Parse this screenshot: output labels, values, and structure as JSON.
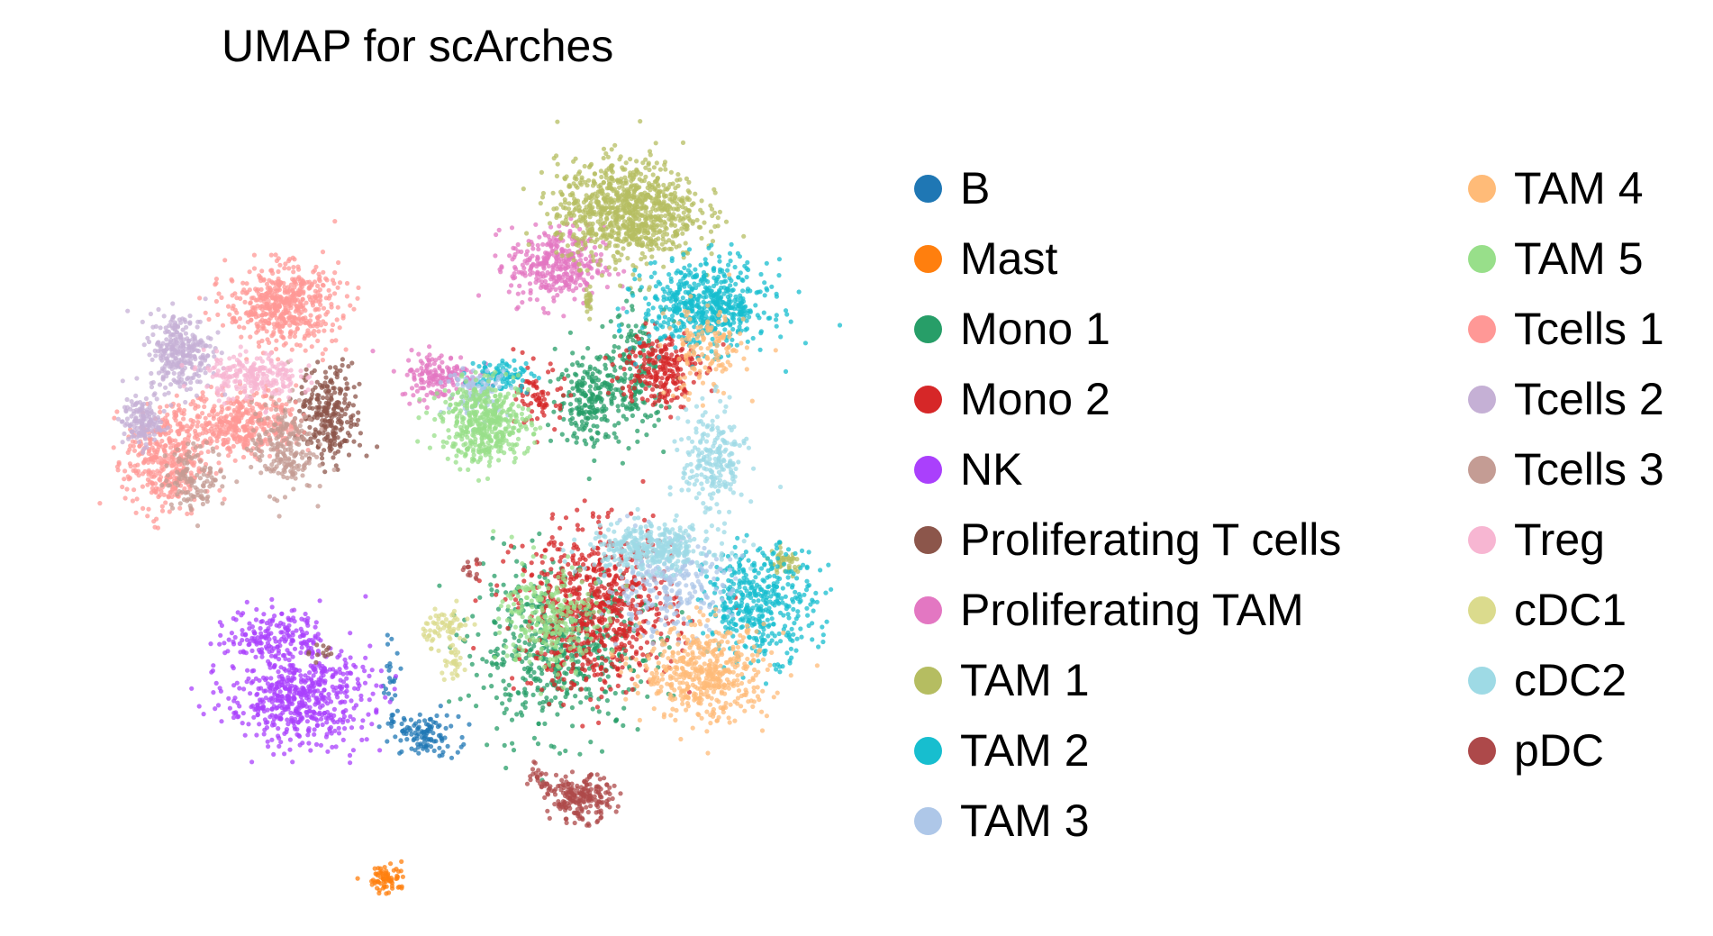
{
  "chart_data": {
    "type": "scatter",
    "title": "UMAP for scArches",
    "xlabel": "",
    "ylabel": "",
    "grid": false,
    "axes_visible": false,
    "legend_position": "right, two columns",
    "categories": [
      {
        "name": "B",
        "color": "#1f77b4",
        "clusters": [
          {
            "cx": 0.46,
            "cy": -0.79,
            "sx": 0.022,
            "sy": 0.013,
            "n": 110
          },
          {
            "cx": 0.42,
            "cy": -0.72,
            "sx": 0.006,
            "sy": 0.03,
            "n": 25
          }
        ]
      },
      {
        "name": "Mast",
        "color": "#ff7f0e",
        "clusters": [
          {
            "cx": 0.415,
            "cy": -0.97,
            "sx": 0.012,
            "sy": 0.01,
            "n": 70
          }
        ]
      },
      {
        "name": "Mono 1",
        "color": "#279e68",
        "clusters": [
          {
            "cx": 0.63,
            "cy": -0.68,
            "sx": 0.055,
            "sy": 0.05,
            "n": 560
          },
          {
            "cx": 0.67,
            "cy": -0.36,
            "sx": 0.02,
            "sy": 0.03,
            "n": 200
          },
          {
            "cx": 0.73,
            "cy": -0.33,
            "sx": 0.02,
            "sy": 0.04,
            "n": 190
          }
        ]
      },
      {
        "name": "Mono 2",
        "color": "#d62728",
        "clusters": [
          {
            "cx": 0.68,
            "cy": -0.63,
            "sx": 0.05,
            "sy": 0.05,
            "n": 720
          },
          {
            "cx": 0.76,
            "cy": -0.32,
            "sx": 0.025,
            "sy": 0.025,
            "n": 230
          },
          {
            "cx": 0.61,
            "cy": -0.36,
            "sx": 0.015,
            "sy": 0.02,
            "n": 70
          }
        ]
      },
      {
        "name": "NK",
        "color": "#aa40fc",
        "clusters": [
          {
            "cx": 0.3,
            "cy": -0.74,
            "sx": 0.045,
            "sy": 0.03,
            "n": 560
          },
          {
            "cx": 0.27,
            "cy": -0.66,
            "sx": 0.03,
            "sy": 0.018,
            "n": 170
          }
        ]
      },
      {
        "name": "Proliferating T cells",
        "color": "#8c564b",
        "clusters": [
          {
            "cx": 0.34,
            "cy": -0.38,
            "sx": 0.02,
            "sy": 0.03,
            "n": 260
          },
          {
            "cx": 0.33,
            "cy": -0.68,
            "sx": 0.008,
            "sy": 0.008,
            "n": 12
          }
        ]
      },
      {
        "name": "Proliferating TAM",
        "color": "#e377c2",
        "clusters": [
          {
            "cx": 0.63,
            "cy": -0.19,
            "sx": 0.03,
            "sy": 0.025,
            "n": 350
          },
          {
            "cx": 0.48,
            "cy": -0.33,
            "sx": 0.025,
            "sy": 0.015,
            "n": 160
          }
        ]
      },
      {
        "name": "TAM 1",
        "color": "#b5bd61",
        "clusters": [
          {
            "cx": 0.72,
            "cy": -0.12,
            "sx": 0.045,
            "sy": 0.032,
            "n": 900
          },
          {
            "cx": 0.92,
            "cy": -0.57,
            "sx": 0.012,
            "sy": 0.008,
            "n": 45
          },
          {
            "cx": 0.67,
            "cy": -0.24,
            "sx": 0.003,
            "sy": 0.012,
            "n": 20
          }
        ]
      },
      {
        "name": "TAM 2",
        "color": "#17becf",
        "clusters": [
          {
            "cx": 0.82,
            "cy": -0.24,
            "sx": 0.04,
            "sy": 0.028,
            "n": 560
          },
          {
            "cx": 0.89,
            "cy": -0.62,
            "sx": 0.035,
            "sy": 0.035,
            "n": 420
          },
          {
            "cx": 0.56,
            "cy": -0.33,
            "sx": 0.02,
            "sy": 0.01,
            "n": 90
          }
        ]
      },
      {
        "name": "TAM 3",
        "color": "#aec7e8",
        "clusters": [
          {
            "cx": 0.77,
            "cy": -0.6,
            "sx": 0.04,
            "sy": 0.03,
            "n": 260
          },
          {
            "cx": 0.53,
            "cy": -0.35,
            "sx": 0.02,
            "sy": 0.015,
            "n": 90
          }
        ]
      },
      {
        "name": "TAM 4",
        "color": "#ffbb78",
        "clusters": [
          {
            "cx": 0.82,
            "cy": -0.71,
            "sx": 0.04,
            "sy": 0.03,
            "n": 480
          },
          {
            "cx": 0.82,
            "cy": -0.3,
            "sx": 0.025,
            "sy": 0.03,
            "n": 140
          }
        ]
      },
      {
        "name": "TAM 5",
        "color": "#98df8a",
        "clusters": [
          {
            "cx": 0.54,
            "cy": -0.39,
            "sx": 0.028,
            "sy": 0.025,
            "n": 460
          },
          {
            "cx": 0.62,
            "cy": -0.64,
            "sx": 0.03,
            "sy": 0.035,
            "n": 260
          }
        ]
      },
      {
        "name": "Tcells 1",
        "color": "#ff9896",
        "clusters": [
          {
            "cx": 0.28,
            "cy": -0.24,
            "sx": 0.035,
            "sy": 0.025,
            "n": 520
          },
          {
            "cx": 0.23,
            "cy": -0.39,
            "sx": 0.035,
            "sy": 0.02,
            "n": 400
          },
          {
            "cx": 0.13,
            "cy": -0.44,
            "sx": 0.025,
            "sy": 0.035,
            "n": 380
          }
        ]
      },
      {
        "name": "Tcells 2",
        "color": "#c5b0d5",
        "clusters": [
          {
            "cx": 0.15,
            "cy": -0.3,
            "sx": 0.02,
            "sy": 0.025,
            "n": 300
          },
          {
            "cx": 0.1,
            "cy": -0.39,
            "sx": 0.012,
            "sy": 0.015,
            "n": 140
          }
        ]
      },
      {
        "name": "Tcells 3",
        "color": "#c49c94",
        "clusters": [
          {
            "cx": 0.28,
            "cy": -0.42,
            "sx": 0.02,
            "sy": 0.03,
            "n": 210
          },
          {
            "cx": 0.17,
            "cy": -0.46,
            "sx": 0.02,
            "sy": 0.02,
            "n": 120
          }
        ]
      },
      {
        "name": "Treg",
        "color": "#f7b6d2",
        "clusters": [
          {
            "cx": 0.24,
            "cy": -0.33,
            "sx": 0.03,
            "sy": 0.015,
            "n": 230
          }
        ]
      },
      {
        "name": "cDC1",
        "color": "#dbdb8d",
        "clusters": [
          {
            "cx": 0.49,
            "cy": -0.65,
            "sx": 0.015,
            "sy": 0.012,
            "n": 70
          },
          {
            "cx": 0.5,
            "cy": -0.7,
            "sx": 0.008,
            "sy": 0.01,
            "n": 30
          }
        ]
      },
      {
        "name": "cDC2",
        "color": "#9edae5",
        "clusters": [
          {
            "cx": 0.75,
            "cy": -0.55,
            "sx": 0.04,
            "sy": 0.015,
            "n": 360
          },
          {
            "cx": 0.83,
            "cy": -0.44,
            "sx": 0.02,
            "sy": 0.035,
            "n": 220
          }
        ]
      },
      {
        "name": "pDC",
        "color": "#ad494a",
        "clusters": [
          {
            "cx": 0.66,
            "cy": -0.87,
            "sx": 0.02,
            "sy": 0.014,
            "n": 200
          },
          {
            "cx": 0.52,
            "cy": -0.58,
            "sx": 0.008,
            "sy": 0.008,
            "n": 15
          },
          {
            "cx": 0.61,
            "cy": -0.84,
            "sx": 0.01,
            "sy": 0.01,
            "n": 25
          }
        ]
      }
    ]
  }
}
